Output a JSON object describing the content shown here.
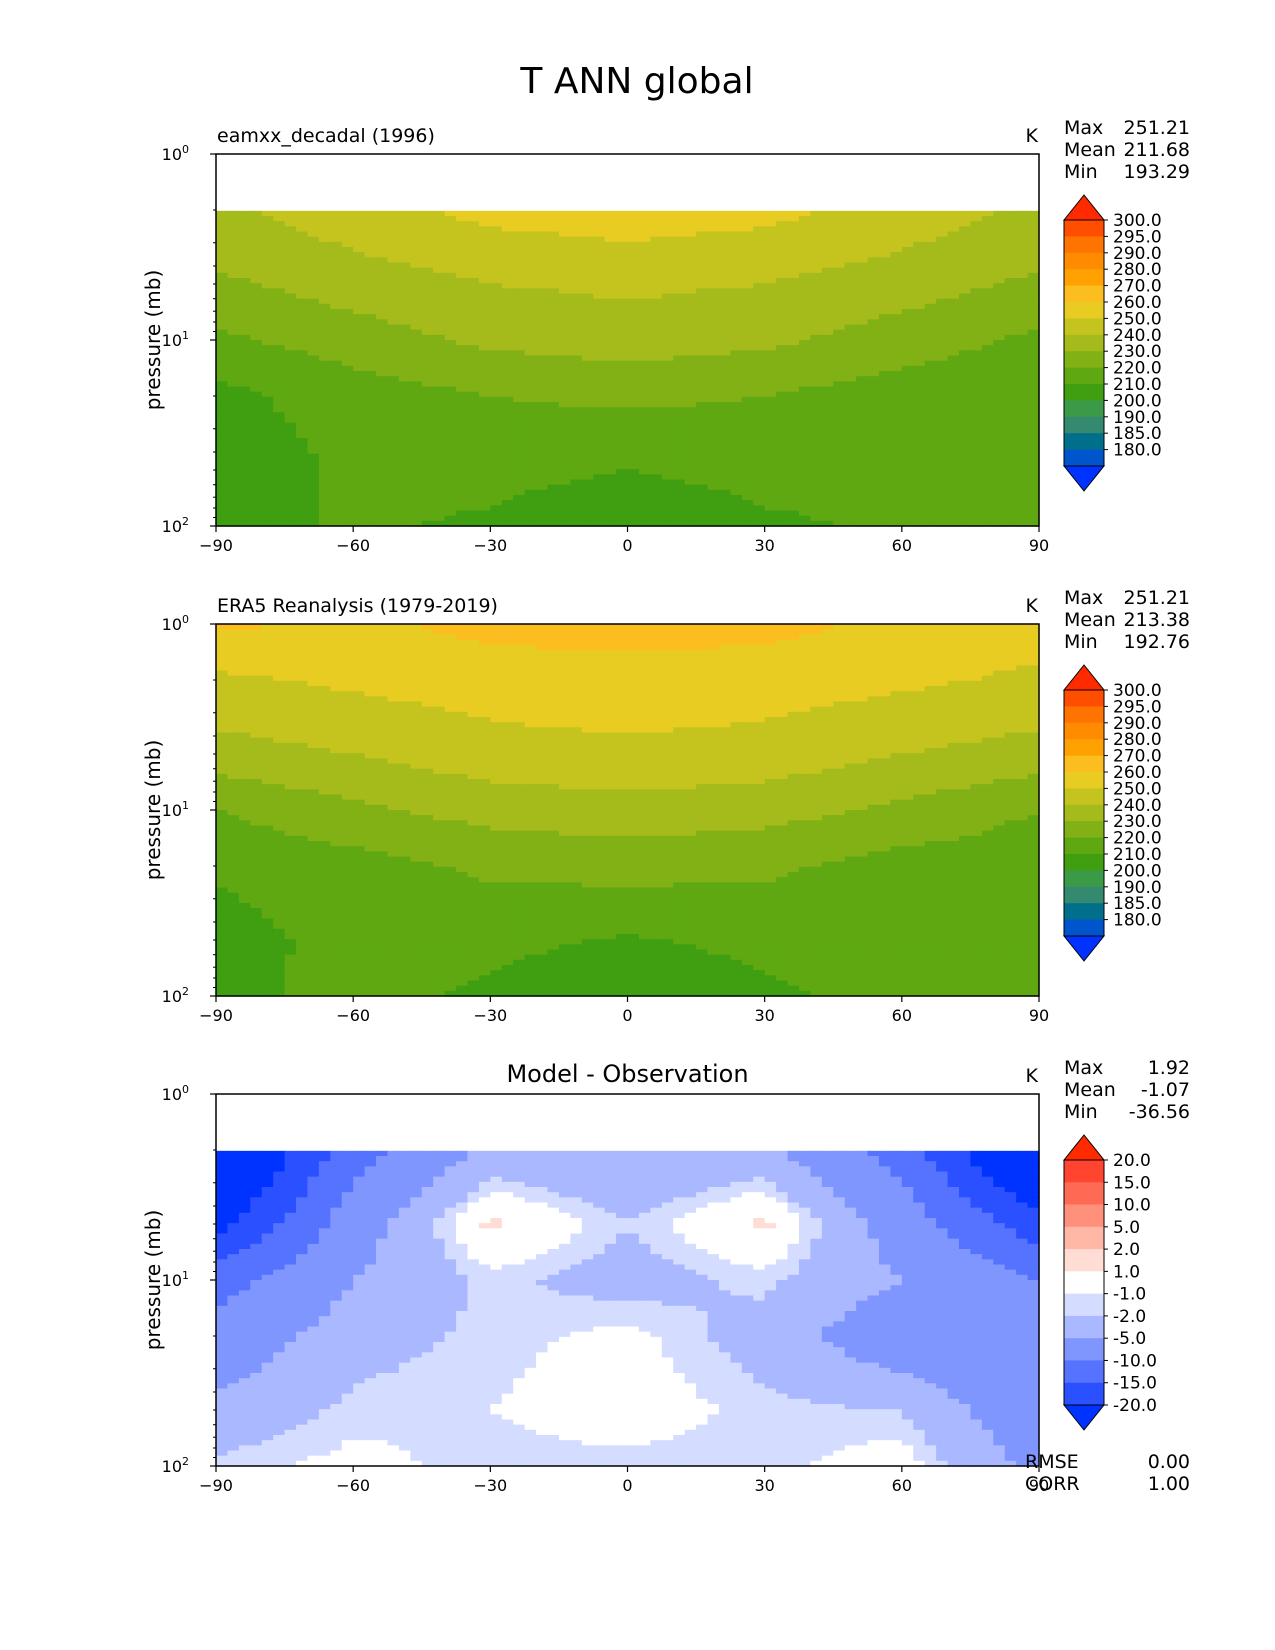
{
  "figure_title": "T ANN global",
  "chart_data": [
    {
      "type": "contourf",
      "title": "eamxx_decadal (1996)",
      "units": "K",
      "ylabel": "pressure (mb)",
      "x_ticks": [
        "−90",
        "−60",
        "−30",
        "0",
        "30",
        "60",
        "90"
      ],
      "xlim": [
        -90,
        90
      ],
      "ylim_log10": [
        0,
        2
      ],
      "y_ticks": [
        {
          "base": "10",
          "exp": "0"
        },
        {
          "base": "10",
          "exp": "1"
        },
        {
          "base": "10",
          "exp": "2"
        }
      ],
      "stats": [
        {
          "label": "Max",
          "value": "251.21"
        },
        {
          "label": "Mean",
          "value": "211.68"
        },
        {
          "label": "Min",
          "value": "193.29"
        }
      ],
      "colorbar": {
        "labels": [
          "300.0",
          "295.0",
          "290.0",
          "280.0",
          "270.0",
          "260.0",
          "250.0",
          "240.0",
          "230.0",
          "220.0",
          "210.0",
          "200.0",
          "190.0",
          "185.0",
          "180.0"
        ],
        "colors": [
          "#ff2a00",
          "#ff4e00",
          "#ff7300",
          "#ff8c00",
          "#ffa100",
          "#fbbd1f",
          "#e8cc22",
          "#c5c41f",
          "#a4bb1b",
          "#81b115",
          "#5fa812",
          "#3f9f11",
          "#3a9a48",
          "#348a6f",
          "#006f8c",
          "#0055cc",
          "#0033ff"
        ]
      },
      "levels_K": [
        180,
        185,
        190,
        200,
        210,
        220,
        230,
        240,
        250,
        260,
        270,
        280,
        290,
        295,
        300
      ],
      "field_profiles": {
        "lat": [
          -90,
          -60,
          -30,
          0,
          30,
          60,
          90
        ],
        "top_pressure_mb": 2.0,
        "p_levels_mb": [
          2,
          5,
          10,
          20,
          50,
          100
        ],
        "values": [
          [
            238,
            246,
            253,
            256,
            253,
            246,
            238
          ],
          [
            228,
            235,
            240,
            242,
            240,
            235,
            228
          ],
          [
            218,
            225,
            232,
            235,
            232,
            225,
            218
          ],
          [
            207,
            215,
            220,
            222,
            220,
            215,
            212
          ],
          [
            203,
            212,
            214,
            210,
            214,
            212,
            212
          ],
          [
            204,
            212,
            208,
            200,
            208,
            212,
            212
          ]
        ]
      },
      "missing_above_mb": 2.0
    },
    {
      "type": "contourf",
      "title": "ERA5 Reanalysis (1979-2019)",
      "units": "K",
      "ylabel": "pressure (mb)",
      "x_ticks": [
        "−90",
        "−60",
        "−30",
        "0",
        "30",
        "60",
        "90"
      ],
      "xlim": [
        -90,
        90
      ],
      "ylim_log10": [
        0,
        2
      ],
      "y_ticks": [
        {
          "base": "10",
          "exp": "0"
        },
        {
          "base": "10",
          "exp": "1"
        },
        {
          "base": "10",
          "exp": "2"
        }
      ],
      "stats": [
        {
          "label": "Max",
          "value": "251.21"
        },
        {
          "label": "Mean",
          "value": "213.38"
        },
        {
          "label": "Min",
          "value": "192.76"
        }
      ],
      "colorbar": {
        "labels": [
          "300.0",
          "295.0",
          "290.0",
          "280.0",
          "270.0",
          "260.0",
          "250.0",
          "240.0",
          "230.0",
          "220.0",
          "210.0",
          "200.0",
          "190.0",
          "185.0",
          "180.0"
        ],
        "colors": [
          "#ff2a00",
          "#ff4e00",
          "#ff7300",
          "#ff8c00",
          "#ffa100",
          "#fbbd1f",
          "#e8cc22",
          "#c5c41f",
          "#a4bb1b",
          "#81b115",
          "#5fa812",
          "#3f9f11",
          "#3a9a48",
          "#348a6f",
          "#006f8c",
          "#0055cc",
          "#0033ff"
        ]
      },
      "field_profiles": {
        "lat": [
          -90,
          -60,
          -30,
          0,
          30,
          60,
          90
        ],
        "p_levels_mb": [
          1,
          2,
          5,
          10,
          20,
          50,
          100
        ],
        "values": [
          [
            262,
            258,
            263,
            264,
            263,
            258,
            255
          ],
          [
            248,
            252,
            255,
            256,
            255,
            252,
            248
          ],
          [
            236,
            240,
            246,
            248,
            246,
            240,
            236
          ],
          [
            220,
            228,
            234,
            236,
            234,
            228,
            220
          ],
          [
            212,
            216,
            222,
            224,
            222,
            216,
            214
          ],
          [
            205,
            214,
            213,
            209,
            213,
            214,
            214
          ],
          [
            206,
            214,
            208,
            200,
            208,
            214,
            214
          ]
        ]
      }
    },
    {
      "type": "contourf",
      "title": "Model - Observation",
      "units": "K",
      "ylabel": "pressure (mb)",
      "x_ticks": [
        "−90",
        "−60",
        "−30",
        "0",
        "30",
        "60",
        "90"
      ],
      "xlim": [
        -90,
        90
      ],
      "ylim_log10": [
        0,
        2
      ],
      "y_ticks": [
        {
          "base": "10",
          "exp": "0"
        },
        {
          "base": "10",
          "exp": "1"
        },
        {
          "base": "10",
          "exp": "2"
        }
      ],
      "stats": [
        {
          "label": "Max",
          "value": "1.92"
        },
        {
          "label": "Mean",
          "value": "-1.07"
        },
        {
          "label": "Min",
          "value": "-36.56"
        }
      ],
      "metrics": [
        {
          "label": "RMSE",
          "value": "0.00"
        },
        {
          "label": "CORR",
          "value": "1.00"
        }
      ],
      "colorbar": {
        "labels": [
          "20.0",
          "15.0",
          "10.0",
          "5.0",
          "2.0",
          "1.0",
          "-1.0",
          "-2.0",
          "-5.0",
          "-10.0",
          "-15.0",
          "-20.0"
        ],
        "colors": [
          "#ff2a00",
          "#ff4530",
          "#ff6a55",
          "#ff917c",
          "#ffb8a6",
          "#ffdcd4",
          "#ffffff",
          "#d4dcff",
          "#aab9ff",
          "#8096ff",
          "#5573ff",
          "#2b50ff",
          "#0033ff"
        ]
      },
      "field_profiles": {
        "lat": [
          -90,
          -60,
          -30,
          0,
          30,
          60,
          90
        ],
        "top_pressure_mb": 2.0,
        "p_levels_mb": [
          2,
          5,
          10,
          20,
          50,
          100
        ],
        "values": [
          [
            -30,
            -12,
            -4,
            -5,
            -4,
            -12,
            -30
          ],
          [
            -22,
            -7,
            1.5,
            -2,
            1.5,
            -7,
            -18
          ],
          [
            -12,
            -5,
            -1.5,
            -3,
            -1.5,
            -5,
            -10
          ],
          [
            -8,
            -3,
            -1.5,
            -0.5,
            -3,
            -8,
            -10
          ],
          [
            -4,
            -1.5,
            -1,
            0,
            -1.5,
            -2,
            -8
          ],
          [
            -1.5,
            -0.5,
            -1.5,
            -1.5,
            -1.5,
            0,
            -6
          ]
        ]
      },
      "missing_above_mb": 2.0
    }
  ]
}
